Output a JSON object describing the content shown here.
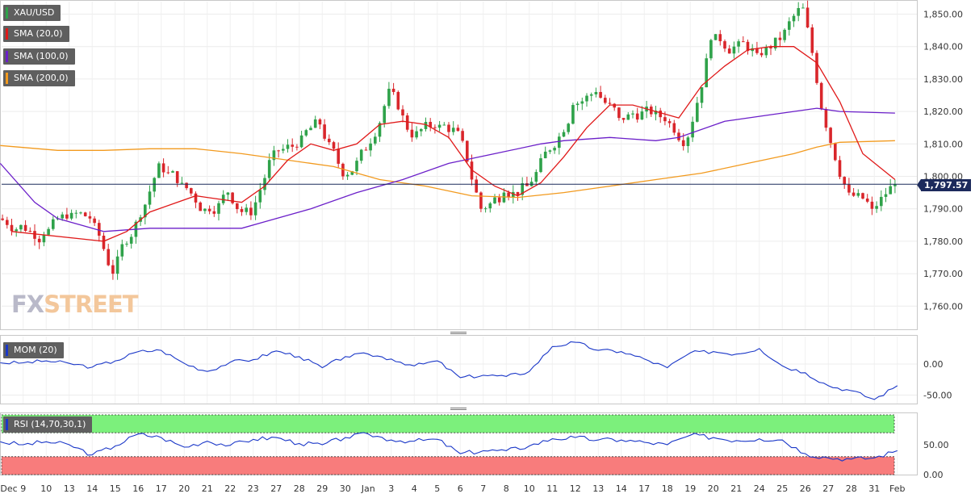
{
  "chart_data": [
    {
      "type": "candlestick",
      "symbol": "XAU/USD",
      "ylim": [
        1752,
        1855
      ],
      "yticks": [
        1760,
        1770,
        1780,
        1790,
        1800,
        1810,
        1820,
        1830,
        1840,
        1850
      ],
      "ytick_labels": [
        "1,760.00",
        "1,770.00",
        "1,780.00",
        "1,790.00",
        "1,800.00",
        "1,810.00",
        "1,820.00",
        "1,830.00",
        "1,840.00",
        "1,850.00"
      ],
      "last_price_label": "1,797.57",
      "last_price": 1797.57,
      "x_tick_labels": [
        "Dec",
        "9",
        "10",
        "13",
        "14",
        "15",
        "16",
        "17",
        "20",
        "21",
        "22",
        "23",
        "27",
        "28",
        "29",
        "30",
        "Jan",
        "3",
        "4",
        "5",
        "6",
        "7",
        "8",
        "10",
        "11",
        "12",
        "13",
        "14",
        "17",
        "18",
        "19",
        "20",
        "21",
        "24",
        "25",
        "26",
        "27",
        "28",
        "31",
        "Feb"
      ],
      "x_tick_sessions": [
        -0.5,
        0.5,
        1.5,
        2.5,
        3.5,
        4.5,
        5.5,
        6.5,
        7.5,
        8.5,
        9.5,
        10.5,
        11.5,
        12.5,
        13.5,
        14.5,
        15.5,
        16.5,
        17.5,
        18.5,
        19.5,
        20.5,
        21.5,
        22.5,
        23.5,
        24.5,
        25.5,
        26.5,
        27.5,
        28.5,
        29.5,
        30.5,
        31.5,
        32.5,
        33.5,
        34.5,
        35.5,
        36.5,
        37.5,
        38.5
      ],
      "session_closes": [
        1785,
        1782,
        1787,
        1787,
        1770,
        1786,
        1804,
        1798,
        1790,
        1795,
        1788,
        1808,
        1809,
        1816,
        1800,
        1808,
        1827,
        1812,
        1815,
        1814,
        1790,
        1795,
        1797,
        1808,
        1822,
        1826,
        1818,
        1820,
        1817,
        1812,
        1842,
        1840,
        1838,
        1842,
        1852,
        1815,
        1795,
        1790,
        1797.57
      ],
      "legend": [
        {
          "label": "SMA (20,0)",
          "color": "#e01919"
        },
        {
          "label": "SMA (100,0)",
          "color": "#6b1fc9"
        },
        {
          "label": "SMA (200,0)",
          "color": "#f29a1e"
        }
      ],
      "sma20": [
        [
          0,
          1783
        ],
        [
          4,
          1780
        ],
        [
          5,
          1783
        ],
        [
          6,
          1789
        ],
        [
          8,
          1794
        ],
        [
          10,
          1792
        ],
        [
          11,
          1797
        ],
        [
          12,
          1805
        ],
        [
          13,
          1810
        ],
        [
          14,
          1808
        ],
        [
          15,
          1810
        ],
        [
          16,
          1816
        ],
        [
          17,
          1817
        ],
        [
          18,
          1816
        ],
        [
          19,
          1812
        ],
        [
          20,
          1802
        ],
        [
          21,
          1797
        ],
        [
          22,
          1794
        ],
        [
          23,
          1798
        ],
        [
          24,
          1806
        ],
        [
          25,
          1815
        ],
        [
          26,
          1822
        ],
        [
          27,
          1822
        ],
        [
          28,
          1820
        ],
        [
          29,
          1818
        ],
        [
          30,
          1828
        ],
        [
          31,
          1834
        ],
        [
          32,
          1839
        ],
        [
          33,
          1840
        ],
        [
          34,
          1840
        ],
        [
          35,
          1835
        ],
        [
          36,
          1823
        ],
        [
          37,
          1807
        ],
        [
          38.4,
          1799
        ]
      ],
      "sma100": [
        [
          -0.5,
          1804
        ],
        [
          1,
          1792
        ],
        [
          2,
          1787
        ],
        [
          3,
          1785
        ],
        [
          4,
          1783
        ],
        [
          6,
          1784
        ],
        [
          8,
          1784
        ],
        [
          10,
          1784
        ],
        [
          11,
          1786
        ],
        [
          13,
          1790
        ],
        [
          15,
          1795
        ],
        [
          17,
          1799
        ],
        [
          19,
          1804
        ],
        [
          21,
          1807
        ],
        [
          23,
          1810
        ],
        [
          24,
          1811
        ],
        [
          26,
          1812
        ],
        [
          28,
          1811
        ],
        [
          29,
          1812
        ],
        [
          31,
          1817
        ],
        [
          33,
          1819
        ],
        [
          34,
          1820
        ],
        [
          35,
          1821
        ],
        [
          36,
          1820
        ],
        [
          38.4,
          1819.5
        ]
      ],
      "sma200": [
        [
          -0.5,
          1809.5
        ],
        [
          2,
          1808
        ],
        [
          4,
          1808
        ],
        [
          6,
          1808.5
        ],
        [
          8,
          1808.5
        ],
        [
          10,
          1807
        ],
        [
          12,
          1805
        ],
        [
          14,
          1803
        ],
        [
          16,
          1799
        ],
        [
          18,
          1797
        ],
        [
          20,
          1794
        ],
        [
          22,
          1793.5
        ],
        [
          24,
          1795
        ],
        [
          26,
          1797
        ],
        [
          28,
          1799
        ],
        [
          30,
          1801
        ],
        [
          32,
          1804
        ],
        [
          34,
          1807
        ],
        [
          35,
          1809
        ],
        [
          36,
          1810.5
        ],
        [
          38.4,
          1811
        ]
      ]
    },
    {
      "type": "line",
      "name": "MOM (20)",
      "color": "#1a37c8",
      "ylim": [
        -64,
        42
      ],
      "yticks": [
        0,
        -50
      ],
      "ytick_labels": [
        "0.00",
        "-50.00"
      ],
      "x": [
        -0.5,
        0.5,
        1.5,
        2.5,
        3.5,
        4.5,
        5.5,
        6.5,
        7.5,
        8.5,
        9.5,
        10.5,
        11.5,
        12.5,
        13.5,
        14.5,
        15.5,
        16.5,
        17.5,
        18.5,
        19.5,
        20.5,
        21.5,
        22.5,
        23.5,
        24.5,
        25.5,
        26.5,
        27.5,
        28.5,
        29.5,
        30.5,
        31.5,
        32.5,
        33.5,
        34.5,
        35.5,
        36.5,
        37.5,
        38.5
      ],
      "values": [
        2,
        2,
        5,
        1,
        -5,
        5,
        20,
        22,
        1,
        -12,
        3,
        7,
        21,
        12,
        -6,
        12,
        16,
        8,
        -3,
        5,
        -22,
        -18,
        -20,
        -12,
        28,
        35,
        22,
        20,
        8,
        -6,
        18,
        20,
        16,
        25,
        -3,
        -14,
        -35,
        -43,
        -57,
        -35
      ]
    },
    {
      "type": "line",
      "name": "RSI (14,70,30,1)",
      "color": "#1a37c8",
      "ylim": [
        0,
        100
      ],
      "yticks": [
        50,
        0
      ],
      "ytick_labels": [
        "50.00",
        "0.00"
      ],
      "overbought": 70,
      "oversold": 30,
      "x": [
        -0.5,
        0.5,
        1.5,
        2.5,
        3.5,
        4.5,
        5.5,
        6.5,
        7.5,
        8.5,
        9.5,
        10.5,
        11.5,
        12.5,
        13.5,
        14.5,
        15.5,
        16.5,
        17.5,
        18.5,
        19.5,
        20.5,
        21.5,
        22.5,
        23.5,
        24.5,
        25.5,
        26.5,
        27.5,
        28.5,
        29.5,
        30.5,
        31.5,
        32.5,
        33.5,
        34.5,
        35.5,
        36.5,
        37.5,
        38.5
      ],
      "values": [
        55,
        50,
        55,
        50,
        33,
        48,
        68,
        62,
        46,
        56,
        49,
        59,
        62,
        52,
        50,
        62,
        68,
        58,
        56,
        59,
        35,
        40,
        40,
        48,
        60,
        62,
        58,
        58,
        54,
        50,
        66,
        62,
        57,
        60,
        58,
        35,
        28,
        26,
        28,
        40
      ]
    }
  ]
}
